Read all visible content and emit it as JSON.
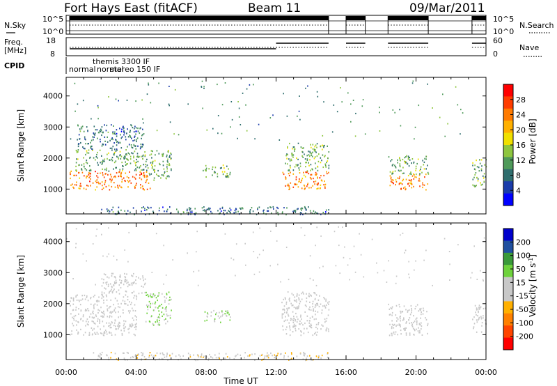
{
  "header": {
    "title": "Fort Hays East (fitACF)",
    "beam": "Beam 11",
    "date": "09/Mar/2011"
  },
  "summary_panels": {
    "nsky_label": "N.Sky",
    "freq_label_line1": "Freq.",
    "freq_label_line2": "[MHz]",
    "cpid_label": "CPID",
    "nsearch_label": "N.Search",
    "nave_label": "Nave",
    "left_ticks_noise": [
      "10^5",
      "10^0"
    ],
    "right_ticks_noise": [
      "10^5",
      "10^0"
    ],
    "left_ticks_freq": [
      "18",
      "8"
    ],
    "right_ticks_nave": [
      "60",
      "0"
    ],
    "cpid_names": [
      "normal",
      "themis 3300 IF",
      "normal",
      "stereo 150 IF"
    ]
  },
  "colorbars": {
    "power": {
      "label": "Power [dB]",
      "ticks": [
        "28",
        "24",
        "20",
        "16",
        "12",
        "8",
        "4"
      ],
      "colors": [
        "#0000ff",
        "#1a3caa",
        "#2f6e6e",
        "#4f9a5a",
        "#8ec63f",
        "#f0e000",
        "#ffb000",
        "#ff7a00",
        "#ff3c00",
        "#ff0000"
      ]
    },
    "velocity": {
      "label": "Velocity [m s",
      "label_sup": "-1",
      "label_end": "]",
      "ticks": [
        "200",
        "100",
        "50",
        "15",
        "-15",
        "-50",
        "-100",
        "-200"
      ],
      "colors": [
        "#ff0000",
        "#ff4500",
        "#ff8000",
        "#ffb000",
        "#c8c8c8",
        "#c8c8c8",
        "#6ed23c",
        "#3a9a3a",
        "#2050a0",
        "#0000cc"
      ]
    }
  },
  "chart_data": [
    {
      "type": "heatmap",
      "title": "Fort Hays East (fitACF) Beam 11 09/Mar/2011",
      "panel": "power",
      "xlabel": "Time UT",
      "ylabel": "Slant Range [km]",
      "xticks": [
        "00:00",
        "04:00",
        "08:00",
        "12:00",
        "16:00",
        "20:00",
        "00:00"
      ],
      "yticks": [
        "1000",
        "2000",
        "3000",
        "4000"
      ],
      "xlim": [
        0,
        24
      ],
      "ylim": [
        200,
        4600
      ],
      "colorbar": "Power [dB]",
      "regions": [
        {
          "t0": 0.2,
          "t1": 4.8,
          "r0": 1000,
          "r1": 1600,
          "value": 24
        },
        {
          "t0": 0.5,
          "t1": 4.6,
          "r0": 1600,
          "r1": 2300,
          "value": 12
        },
        {
          "t0": 0.6,
          "t1": 4.4,
          "r0": 2300,
          "r1": 3100,
          "value": 8
        },
        {
          "t0": 4.6,
          "t1": 6.0,
          "r0": 1300,
          "r1": 2300,
          "value": 12
        },
        {
          "t0": 7.8,
          "t1": 9.4,
          "r0": 1400,
          "r1": 1800,
          "value": 12
        },
        {
          "t0": 12.3,
          "t1": 15.0,
          "r0": 1000,
          "r1": 1600,
          "value": 24
        },
        {
          "t0": 12.5,
          "t1": 15.0,
          "r0": 1600,
          "r1": 2500,
          "value": 12
        },
        {
          "t0": 18.4,
          "t1": 20.7,
          "r0": 1000,
          "r1": 1500,
          "value": 24
        },
        {
          "t0": 18.4,
          "t1": 20.7,
          "r0": 1500,
          "r1": 2100,
          "value": 12
        },
        {
          "t0": 23.2,
          "t1": 24.0,
          "r0": 1100,
          "r1": 2000,
          "value": 12
        },
        {
          "t0": 2.0,
          "t1": 15.0,
          "r0": 200,
          "r1": 450,
          "value": 8
        }
      ]
    },
    {
      "type": "heatmap",
      "panel": "velocity",
      "xlabel": "Time UT",
      "ylabel": "Slant Range [km]",
      "xticks": [
        "00:00",
        "04:00",
        "08:00",
        "12:00",
        "16:00",
        "20:00",
        "00:00"
      ],
      "yticks": [
        "1000",
        "2000",
        "3000",
        "4000"
      ],
      "xlim": [
        0,
        24
      ],
      "ylim": [
        200,
        4600
      ],
      "colorbar": "Velocity [m s-1]",
      "regions": [
        {
          "t0": 0.2,
          "t1": 4.0,
          "r0": 1000,
          "r1": 2300,
          "value": 0
        },
        {
          "t0": 2.0,
          "t1": 4.5,
          "r0": 2300,
          "r1": 3000,
          "value": -15
        },
        {
          "t0": 4.5,
          "t1": 6.0,
          "r0": 1300,
          "r1": 2400,
          "value": 50
        },
        {
          "t0": 7.8,
          "t1": 9.4,
          "r0": 1400,
          "r1": 1800,
          "value": 50
        },
        {
          "t0": 12.3,
          "t1": 15.0,
          "r0": 1000,
          "r1": 2400,
          "value": 0
        },
        {
          "t0": 18.4,
          "t1": 20.7,
          "r0": 1000,
          "r1": 2000,
          "value": 0
        },
        {
          "t0": 23.2,
          "t1": 24.0,
          "r0": 1100,
          "r1": 2000,
          "value": 0
        },
        {
          "t0": 1.5,
          "t1": 15.0,
          "r0": 200,
          "r1": 450,
          "value": -40
        }
      ]
    }
  ]
}
